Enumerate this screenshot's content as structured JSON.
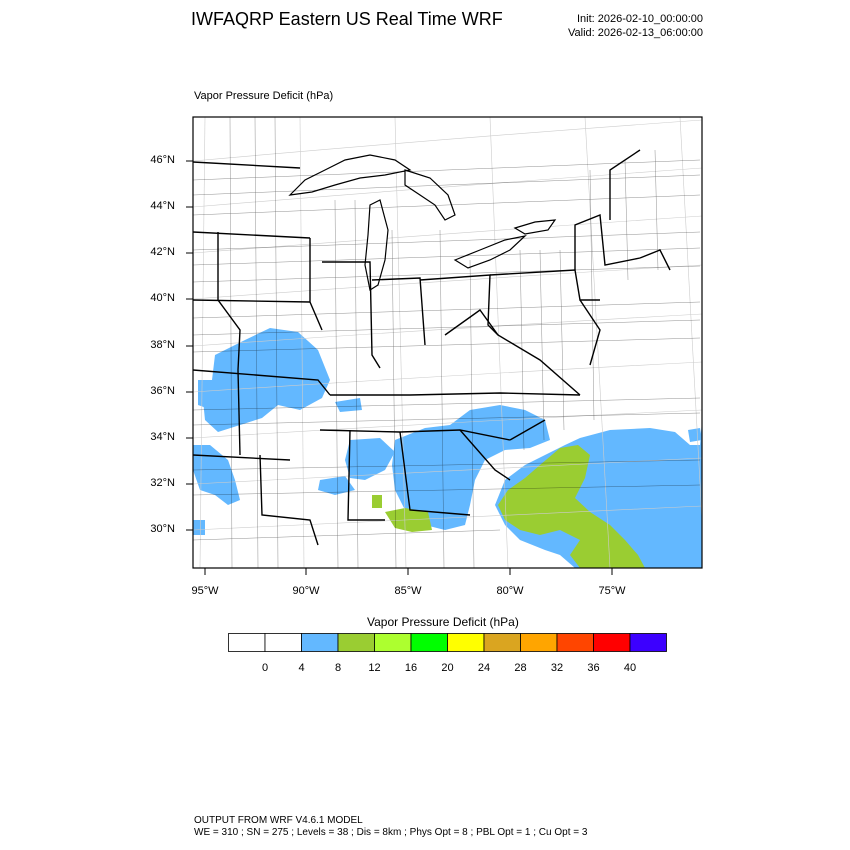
{
  "header": {
    "title": "IWFAQRP Eastern US Real Time WRF",
    "init": "Init: 2026-02-10_00:00:00",
    "valid": "Valid: 2026-02-13_06:00:00"
  },
  "field": {
    "title": "Vapor Pressure Deficit   (hPa)"
  },
  "map": {
    "lat_labels": [
      "46°N",
      "44°N",
      "42°N",
      "40°N",
      "38°N",
      "36°N",
      "34°N",
      "32°N",
      "30°N"
    ],
    "lon_labels": [
      "95°W",
      "90°W",
      "85°W",
      "80°W",
      "75°W"
    ],
    "fill_colors": {
      "land": "#ffffff",
      "band_4_8": "#63b8ff",
      "band_8_12": "#9acd32"
    }
  },
  "colorbar": {
    "title": "Vapor Pressure Deficit  (hPa)",
    "labels": [
      "0",
      "4",
      "8",
      "12",
      "16",
      "20",
      "24",
      "28",
      "32",
      "36",
      "40"
    ],
    "colors": [
      "#ffffff",
      "#ffffff",
      "#63b8ff",
      "#9acd32",
      "#adff2f",
      "#00ff00",
      "#ffff00",
      "#daa520",
      "#ffa500",
      "#ff4500",
      "#ff0000",
      "#3c00ff"
    ]
  },
  "footer": {
    "line1": "OUTPUT FROM WRF V4.6.1 MODEL",
    "line2": "WE = 310 ; SN = 275 ; Levels = 38 ; Dis = 8km ; Phys Opt = 8 ; PBL Opt = 1 ; Cu Opt = 3"
  }
}
